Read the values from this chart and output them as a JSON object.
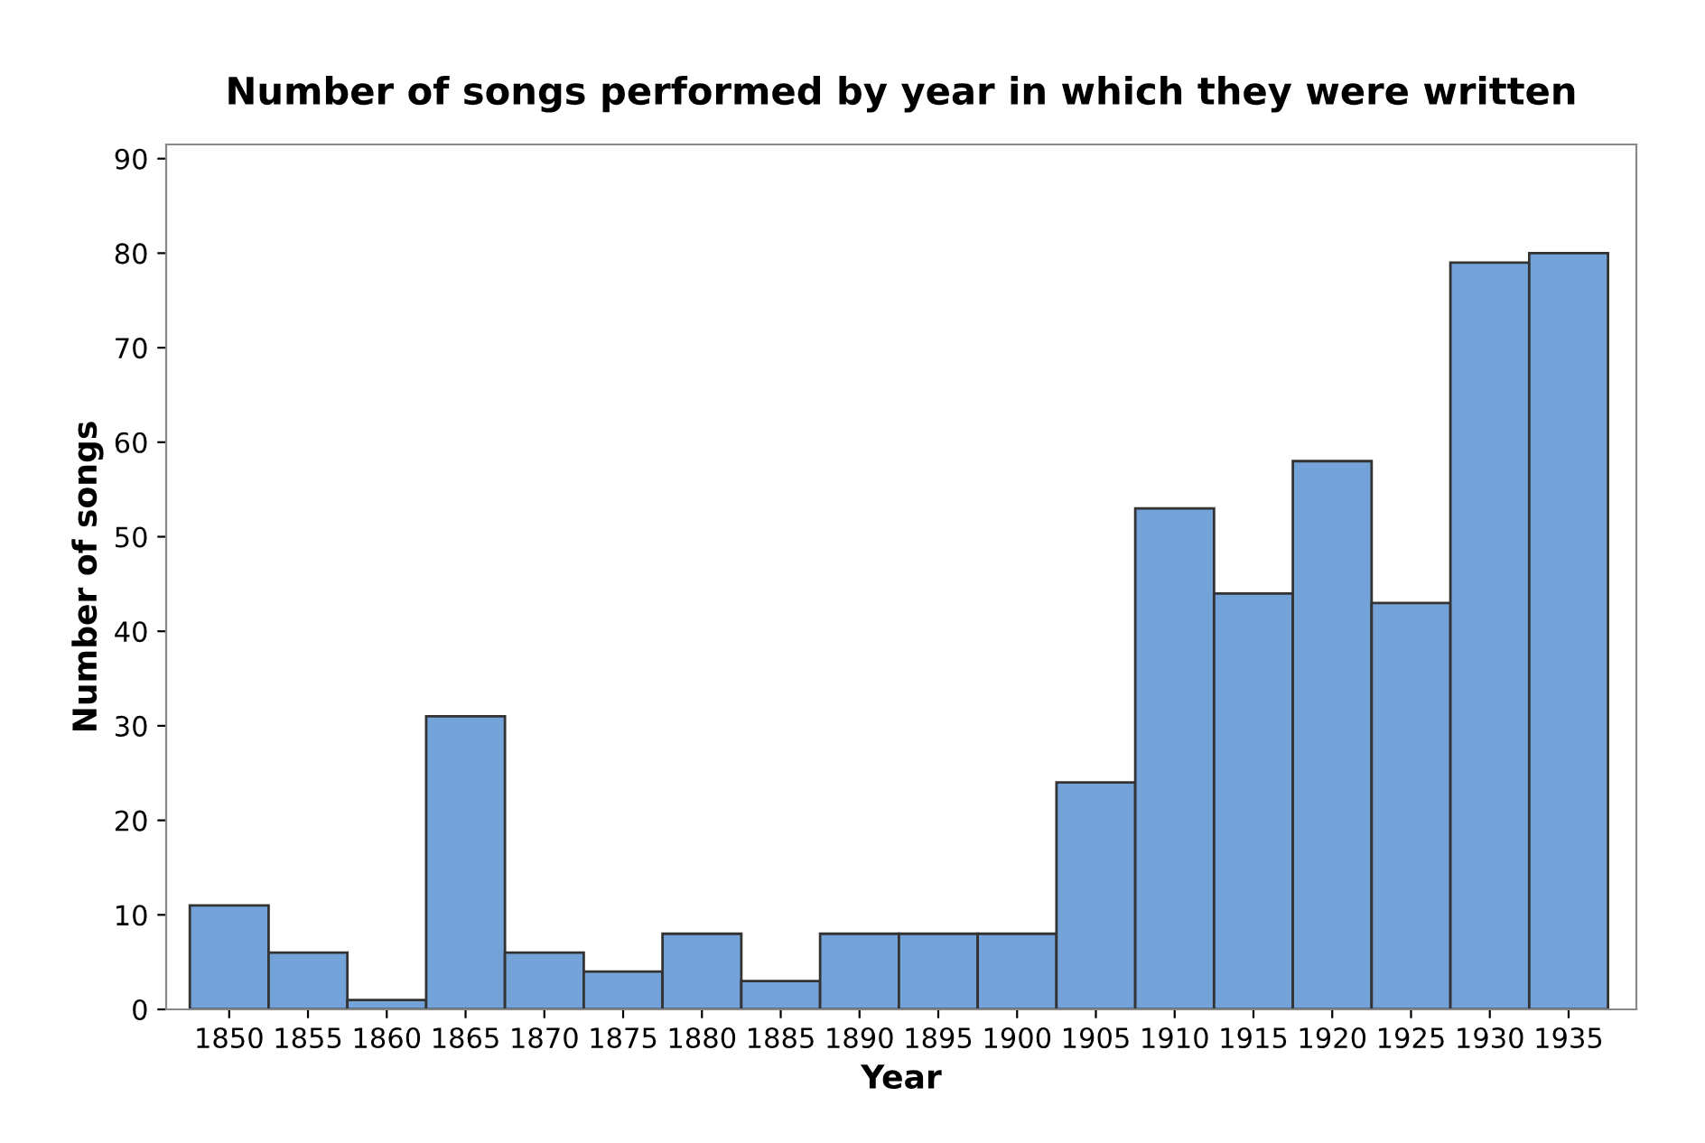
{
  "chart_data": {
    "type": "histogram",
    "title": "Number of songs performed by year in which they were written",
    "xlabel": "Year",
    "ylabel": "Number of songs",
    "bins": [
      1847.5,
      1852.5,
      1857.5,
      1862.5,
      1867.5,
      1872.5,
      1877.5,
      1882.5,
      1887.5,
      1892.5,
      1897.5,
      1902.5,
      1907.5,
      1912.5,
      1917.5,
      1922.5,
      1927.5,
      1932.5,
      1937.5
    ],
    "values": [
      11,
      6,
      1,
      31,
      6,
      4,
      8,
      3,
      8,
      8,
      8,
      24,
      53,
      44,
      58,
      43,
      79,
      80
    ],
    "color": "#74a3d9",
    "xlim": [
      1846,
      1939.3
    ],
    "ylim": [
      0,
      91.5
    ],
    "xticks": [
      1850,
      1855,
      1860,
      1865,
      1870,
      1875,
      1880,
      1885,
      1890,
      1895,
      1900,
      1905,
      1910,
      1915,
      1920,
      1925,
      1930,
      1935
    ],
    "yticks": [
      0,
      10,
      20,
      30,
      40,
      50,
      60,
      70,
      80,
      90
    ],
    "grid": false,
    "legend": false
  }
}
